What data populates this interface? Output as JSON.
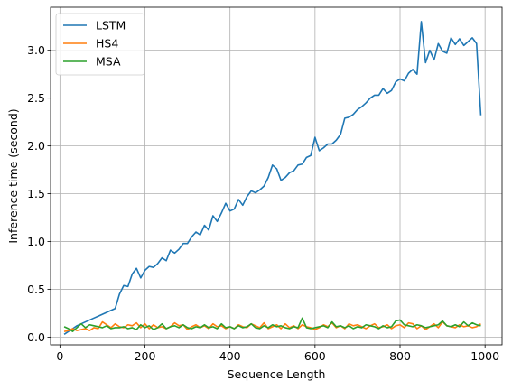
{
  "chart_data": {
    "type": "line",
    "xlabel": "Sequence Length",
    "ylabel": "Inference time (second)",
    "xlim": [
      -22,
      1040
    ],
    "ylim": [
      -0.08,
      3.45
    ],
    "xticks": [
      0,
      200,
      400,
      600,
      800,
      1000
    ],
    "yticks": [
      0.0,
      0.5,
      1.0,
      1.5,
      2.0,
      2.5,
      3.0
    ],
    "xtick_labels": [
      "0",
      "200",
      "400",
      "600",
      "800",
      "1000"
    ],
    "ytick_labels": [
      "0.0",
      "0.5",
      "1.0",
      "1.5",
      "2.0",
      "2.5",
      "3.0"
    ],
    "grid": true,
    "legend_position": "top-left",
    "x": [
      10,
      20,
      30,
      40,
      50,
      60,
      70,
      80,
      90,
      100,
      110,
      120,
      130,
      140,
      150,
      160,
      170,
      180,
      190,
      200,
      210,
      220,
      230,
      240,
      250,
      260,
      270,
      280,
      290,
      300,
      310,
      320,
      330,
      340,
      350,
      360,
      370,
      380,
      390,
      400,
      410,
      420,
      430,
      440,
      450,
      460,
      470,
      480,
      490,
      500,
      510,
      520,
      530,
      540,
      550,
      560,
      570,
      580,
      590,
      600,
      610,
      620,
      630,
      640,
      650,
      660,
      670,
      680,
      690,
      700,
      710,
      720,
      730,
      740,
      750,
      760,
      770,
      780,
      790,
      800,
      810,
      820,
      830,
      840,
      850,
      860,
      870,
      880,
      890,
      900,
      910,
      920,
      930,
      940,
      950,
      960,
      970,
      980,
      990
    ],
    "series": [
      {
        "name": "LSTM",
        "color": "#1f77b4",
        "values": [
          0.03,
          0.06,
          0.09,
          0.12,
          0.14,
          0.16,
          0.18,
          0.2,
          0.22,
          0.24,
          0.26,
          0.28,
          0.3,
          0.45,
          0.54,
          0.53,
          0.66,
          0.72,
          0.62,
          0.7,
          0.74,
          0.73,
          0.77,
          0.83,
          0.8,
          0.91,
          0.88,
          0.92,
          0.98,
          0.98,
          1.05,
          1.1,
          1.07,
          1.17,
          1.12,
          1.27,
          1.21,
          1.3,
          1.4,
          1.32,
          1.34,
          1.44,
          1.38,
          1.47,
          1.53,
          1.51,
          1.54,
          1.58,
          1.67,
          1.8,
          1.76,
          1.64,
          1.67,
          1.72,
          1.74,
          1.8,
          1.81,
          1.88,
          1.9,
          2.09,
          1.95,
          1.98,
          2.02,
          2.02,
          2.06,
          2.12,
          2.29,
          2.3,
          2.33,
          2.38,
          2.41,
          2.45,
          2.5,
          2.53,
          2.53,
          2.6,
          2.55,
          2.58,
          2.67,
          2.7,
          2.68,
          2.76,
          2.8,
          2.75,
          3.3,
          2.87,
          3.0,
          2.9,
          3.07,
          2.99,
          2.97,
          3.13,
          3.06,
          3.12,
          3.05,
          3.09,
          3.13,
          3.07,
          2.32
        ]
      },
      {
        "name": "HS4",
        "color": "#ff7f0e",
        "values": [
          0.06,
          0.07,
          0.09,
          0.07,
          0.08,
          0.09,
          0.07,
          0.1,
          0.09,
          0.16,
          0.13,
          0.1,
          0.14,
          0.11,
          0.1,
          0.13,
          0.12,
          0.15,
          0.1,
          0.14,
          0.09,
          0.13,
          0.1,
          0.11,
          0.09,
          0.11,
          0.15,
          0.12,
          0.13,
          0.08,
          0.11,
          0.13,
          0.1,
          0.12,
          0.09,
          0.14,
          0.11,
          0.12,
          0.09,
          0.11,
          0.09,
          0.13,
          0.11,
          0.1,
          0.14,
          0.12,
          0.1,
          0.15,
          0.09,
          0.11,
          0.13,
          0.09,
          0.14,
          0.1,
          0.12,
          0.09,
          0.13,
          0.11,
          0.1,
          0.08,
          0.1,
          0.13,
          0.11,
          0.15,
          0.1,
          0.12,
          0.09,
          0.14,
          0.12,
          0.13,
          0.11,
          0.09,
          0.12,
          0.14,
          0.1,
          0.11,
          0.13,
          0.09,
          0.12,
          0.13,
          0.1,
          0.15,
          0.14,
          0.09,
          0.12,
          0.08,
          0.11,
          0.14,
          0.1,
          0.16,
          0.12,
          0.11,
          0.1,
          0.13,
          0.11,
          0.12,
          0.1,
          0.11,
          0.14
        ]
      },
      {
        "name": "MSA",
        "color": "#2ca02c",
        "values": [
          0.11,
          0.09,
          0.06,
          0.1,
          0.14,
          0.1,
          0.13,
          0.12,
          0.11,
          0.1,
          0.12,
          0.09,
          0.1,
          0.1,
          0.11,
          0.09,
          0.1,
          0.08,
          0.13,
          0.1,
          0.12,
          0.08,
          0.1,
          0.14,
          0.09,
          0.11,
          0.12,
          0.1,
          0.13,
          0.1,
          0.09,
          0.11,
          0.1,
          0.13,
          0.1,
          0.11,
          0.09,
          0.14,
          0.1,
          0.11,
          0.09,
          0.12,
          0.1,
          0.11,
          0.14,
          0.1,
          0.09,
          0.12,
          0.1,
          0.13,
          0.11,
          0.12,
          0.1,
          0.09,
          0.11,
          0.1,
          0.2,
          0.1,
          0.09,
          0.1,
          0.11,
          0.12,
          0.1,
          0.16,
          0.11,
          0.12,
          0.1,
          0.12,
          0.09,
          0.11,
          0.1,
          0.13,
          0.12,
          0.11,
          0.09,
          0.12,
          0.1,
          0.11,
          0.17,
          0.18,
          0.13,
          0.12,
          0.11,
          0.13,
          0.12,
          0.1,
          0.11,
          0.12,
          0.13,
          0.17,
          0.12,
          0.11,
          0.13,
          0.11,
          0.16,
          0.12,
          0.15,
          0.13,
          0.12
        ]
      }
    ]
  }
}
